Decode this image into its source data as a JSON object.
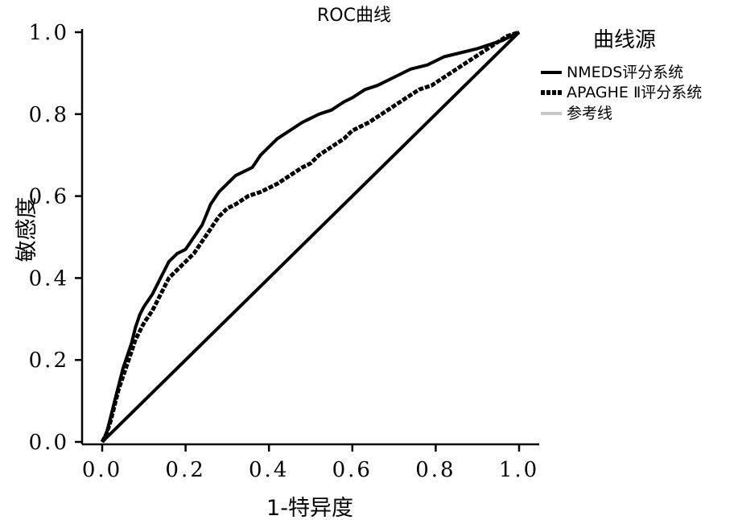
{
  "chart_data": {
    "type": "line",
    "title": "ROC曲线",
    "xlabel": "1-特异度",
    "ylabel": "敏感度",
    "xlim": [
      0.0,
      1.0
    ],
    "ylim": [
      0.0,
      1.0
    ],
    "x_ticks": [
      0.0,
      0.2,
      0.4,
      0.6,
      0.8,
      1.0
    ],
    "y_ticks": [
      0.0,
      0.2,
      0.4,
      0.6,
      0.8,
      1.0
    ],
    "x_tick_labels": [
      "0.0",
      "0.2",
      "0.4",
      "0.6",
      "0.8",
      "1.0"
    ],
    "y_tick_labels": [
      "0.0",
      "0.2",
      "0.4",
      "0.6",
      "0.8",
      "1.0"
    ],
    "grid": false,
    "legend": {
      "title": "曲线源",
      "position": "top-right",
      "entries": [
        "NMEDS评分系统",
        "APAGHE Ⅱ评分系统",
        "参考线"
      ]
    },
    "series": [
      {
        "name": "NMEDS评分系统",
        "color": "#000000",
        "style": "solid",
        "x": [
          0.0,
          0.01,
          0.02,
          0.03,
          0.04,
          0.05,
          0.06,
          0.07,
          0.08,
          0.09,
          0.1,
          0.12,
          0.14,
          0.16,
          0.18,
          0.2,
          0.22,
          0.24,
          0.26,
          0.28,
          0.3,
          0.32,
          0.34,
          0.36,
          0.38,
          0.4,
          0.42,
          0.45,
          0.48,
          0.5,
          0.52,
          0.55,
          0.58,
          0.6,
          0.63,
          0.66,
          0.7,
          0.74,
          0.78,
          0.82,
          0.86,
          0.9,
          0.93,
          0.96,
          0.98,
          1.0
        ],
        "y": [
          0.0,
          0.02,
          0.06,
          0.1,
          0.14,
          0.18,
          0.21,
          0.24,
          0.28,
          0.31,
          0.33,
          0.36,
          0.4,
          0.44,
          0.46,
          0.47,
          0.5,
          0.53,
          0.58,
          0.61,
          0.63,
          0.65,
          0.66,
          0.67,
          0.7,
          0.72,
          0.74,
          0.76,
          0.78,
          0.79,
          0.8,
          0.81,
          0.83,
          0.84,
          0.86,
          0.87,
          0.89,
          0.91,
          0.92,
          0.94,
          0.95,
          0.96,
          0.97,
          0.98,
          0.99,
          1.0
        ]
      },
      {
        "name": "APAGHE Ⅱ评分系统",
        "color": "#000000",
        "style": "dashed",
        "x": [
          0.0,
          0.01,
          0.02,
          0.03,
          0.04,
          0.05,
          0.06,
          0.07,
          0.08,
          0.09,
          0.1,
          0.12,
          0.14,
          0.16,
          0.18,
          0.2,
          0.22,
          0.24,
          0.26,
          0.28,
          0.3,
          0.32,
          0.35,
          0.38,
          0.4,
          0.42,
          0.45,
          0.48,
          0.5,
          0.52,
          0.55,
          0.58,
          0.6,
          0.62,
          0.64,
          0.67,
          0.7,
          0.73,
          0.76,
          0.79,
          0.82,
          0.85,
          0.88,
          0.91,
          0.94,
          0.97,
          1.0
        ],
        "y": [
          0.0,
          0.02,
          0.05,
          0.09,
          0.13,
          0.16,
          0.19,
          0.22,
          0.25,
          0.27,
          0.29,
          0.32,
          0.36,
          0.4,
          0.42,
          0.44,
          0.46,
          0.49,
          0.52,
          0.55,
          0.57,
          0.58,
          0.6,
          0.61,
          0.62,
          0.63,
          0.65,
          0.67,
          0.68,
          0.7,
          0.72,
          0.74,
          0.76,
          0.77,
          0.78,
          0.8,
          0.82,
          0.84,
          0.86,
          0.87,
          0.89,
          0.91,
          0.93,
          0.95,
          0.97,
          0.99,
          1.0
        ]
      },
      {
        "name": "参考线",
        "color": "#000000",
        "style": "solid",
        "x": [
          0.0,
          1.0
        ],
        "y": [
          0.0,
          1.0
        ]
      }
    ]
  }
}
